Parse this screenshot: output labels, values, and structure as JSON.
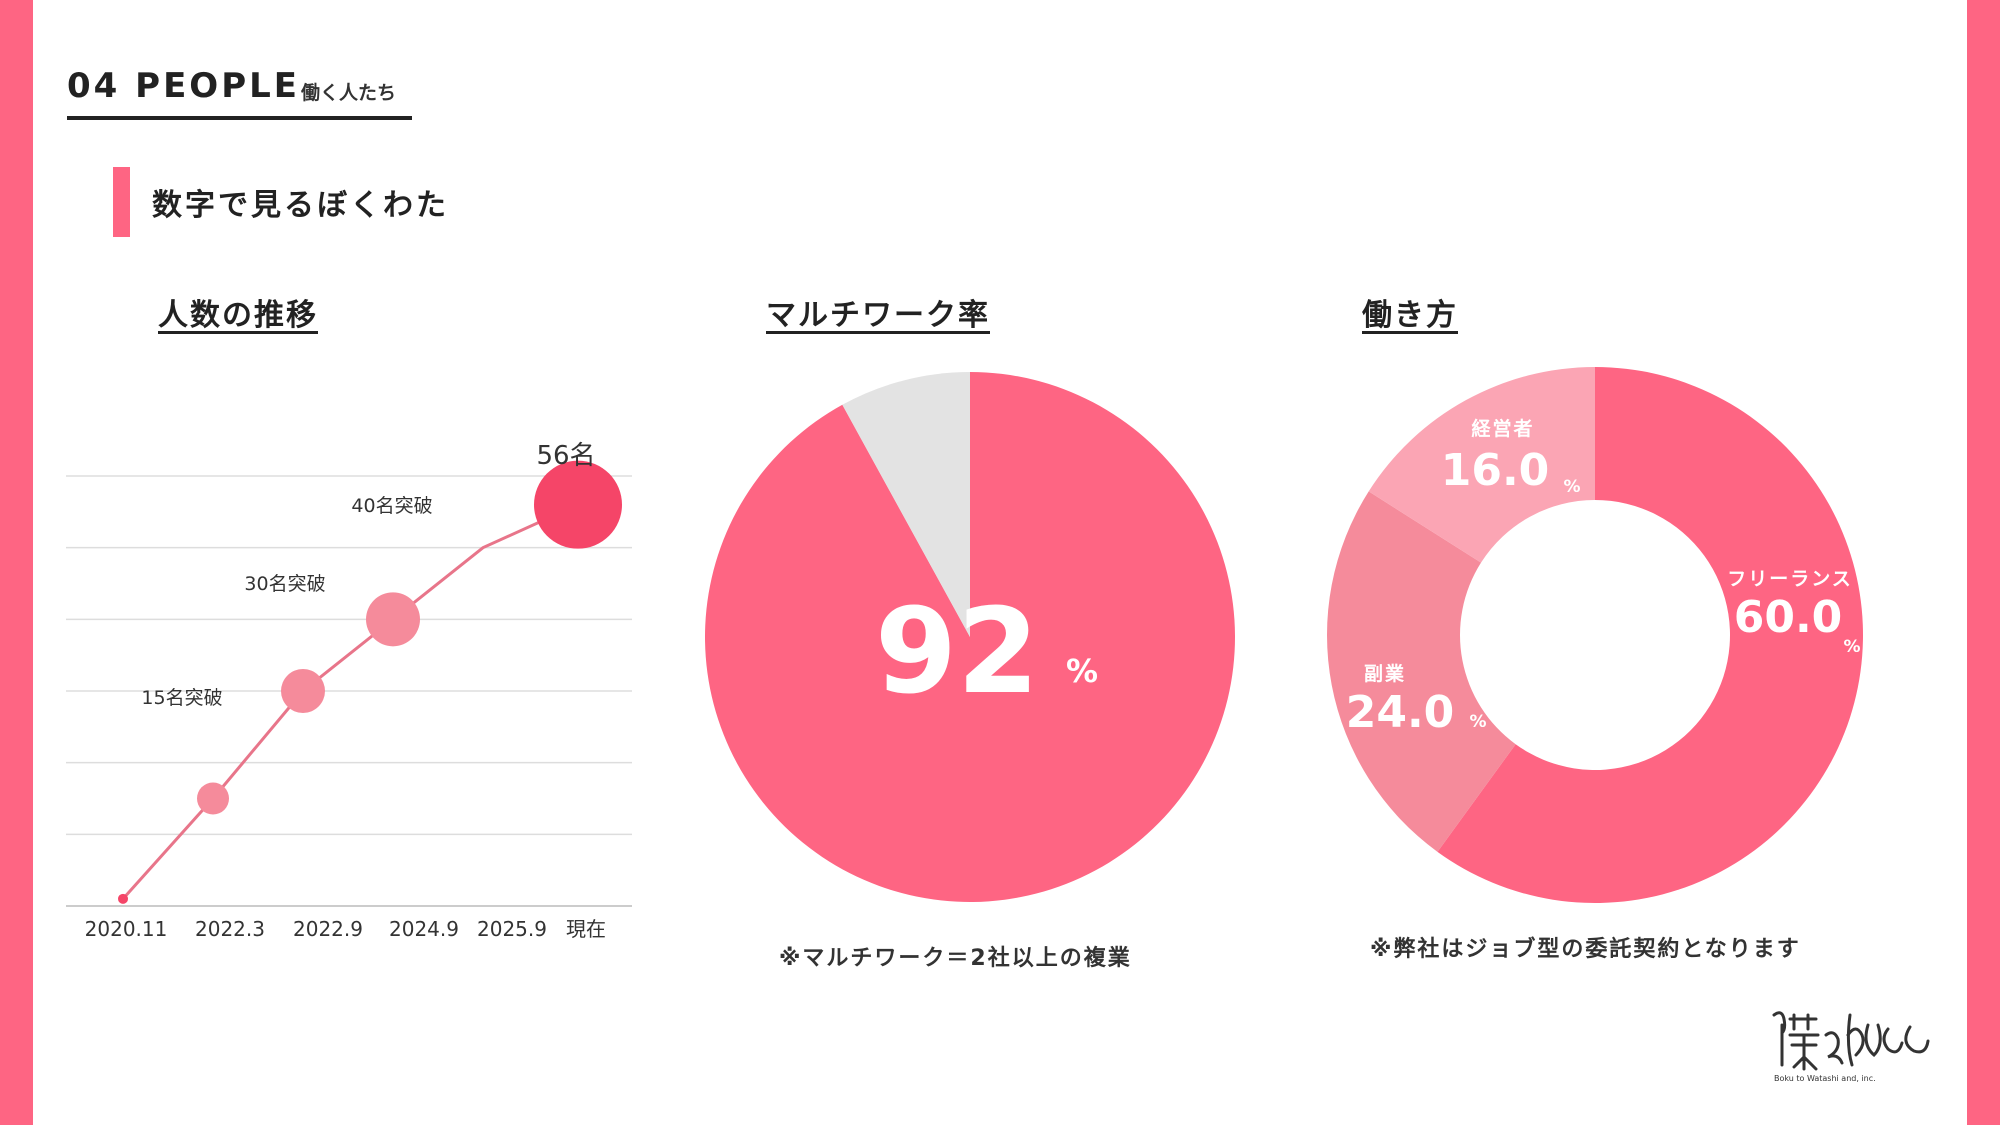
{
  "header": {
    "section": "04 PEOPLE",
    "section_sub": "働く人たち",
    "subhead": "数字で見るぼくわた"
  },
  "colors": {
    "accent": "#fe6583",
    "accent_dark": "#f54568",
    "accent_mid": "#f58b9b",
    "accent_light": "#fba5b4",
    "gray": "#e3e3e3"
  },
  "panels": {
    "headcount_title": "人数の推移",
    "multiwork_title": "マルチワーク率",
    "workstyle_title": "働き方"
  },
  "notes": {
    "multiwork": "※マルチワーク＝2社以上の複業",
    "workstyle": "※弊社はジョブ型の委託契約となります"
  },
  "logo": {
    "text": "僕と私と",
    "sub": "Boku to Watashi and, inc."
  },
  "chart_data": [
    {
      "type": "line",
      "title": "人数の推移",
      "categories": [
        "2020.11",
        "2022.3",
        "2022.9",
        "2024.9",
        "2025.9",
        "現在"
      ],
      "series": [
        {
          "values": [
            1,
            15,
            30,
            40,
            50,
            56
          ]
        }
      ],
      "annotations": [
        "15名突破",
        "30名突破",
        "40名突破"
      ],
      "top_label": "56名",
      "grid": true
    },
    {
      "type": "pie",
      "title": "マルチワーク率",
      "values": [
        92,
        8
      ],
      "center_value": "92",
      "center_unit": "%"
    },
    {
      "type": "pie",
      "title": "働き方",
      "donut": true,
      "slices": [
        {
          "label": "フリーランス",
          "value": 60.0,
          "display": "60.0",
          "unit": "%",
          "color": "#fe6583"
        },
        {
          "label": "副業",
          "value": 24.0,
          "display": "24.0",
          "unit": "%",
          "color": "#f58b9b"
        },
        {
          "label": "経営者",
          "value": 16.0,
          "display": "16.0",
          "unit": "%",
          "color": "#fba5b4"
        }
      ]
    }
  ]
}
